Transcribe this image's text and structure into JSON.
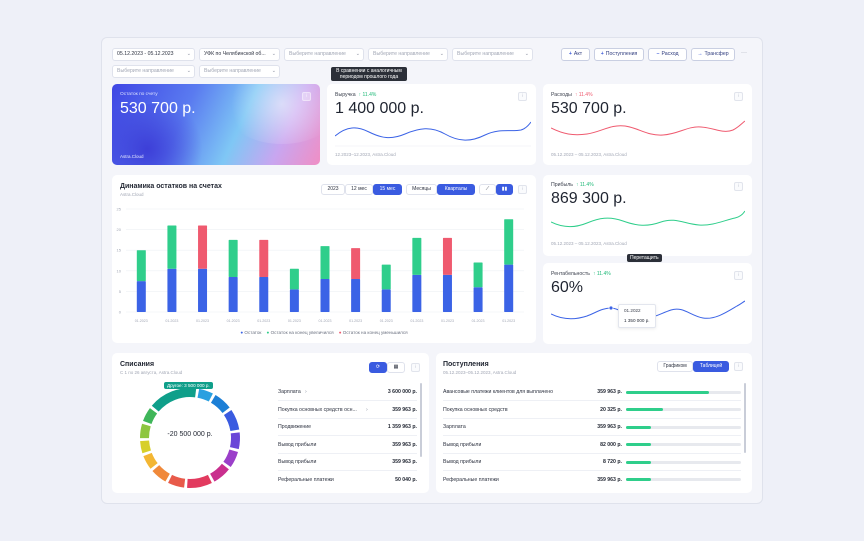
{
  "filters": {
    "date_range": "05.12.2023 - 05.12.2023",
    "org": "УФК по Челябинской об...",
    "direction_placeholder": "Выберите направление"
  },
  "actions": {
    "act": "Акт",
    "income": "Поступления",
    "expense": "Расход",
    "transfer": "Трансфер",
    "more": "···"
  },
  "tooltip_compare": "В сравнении с аналогичным периодом прошлого года",
  "tooltip_drag": "Перетащить",
  "balance_card": {
    "label": "Остаток по счету",
    "value": "530 700 р.",
    "footer": "Astra.Cloud",
    "icon": "grid-icon"
  },
  "revenue_card": {
    "label": "Выручка",
    "trend": "↑ 11.4%",
    "value": "1 400 000 р.",
    "footer": "12.2023–12.2023,  Astra.Cloud",
    "icon": "grid-icon"
  },
  "expenses_card": {
    "label": "Расходы",
    "trend": "↑ 11.4%",
    "value": "530 700 р.",
    "footer": "05.12.2023 – 05.12.2023,  Astra.Cloud",
    "icon": "grid-icon"
  },
  "profit_card": {
    "label": "Прибыль",
    "trend": "↑ 11.4%",
    "value": "869 300 р.",
    "footer": "05.12.2023 – 05.12.2023,  Astra.Cloud",
    "icon": "grid-icon"
  },
  "profitability_card": {
    "label": "Рентабельность",
    "trend": "↑ 11.4%",
    "value": "60%",
    "point_label": "01.2022",
    "point_value": "1 350 000 р.",
    "icon": "grid-icon"
  },
  "balances_chart": {
    "title": "Динамика остатков на счетах",
    "subtitle": "Astra.Cloud",
    "periods": [
      "2023",
      "12 мес",
      "15 мес"
    ],
    "active_period": "15 мес",
    "granularity": [
      "Месяцы",
      "Кварталы"
    ],
    "active_granularity": "Кварталы",
    "chart_type_icons": [
      "line-chart-icon",
      "bar-chart-icon"
    ],
    "legend": [
      "Остаток",
      "Остаток на конец увеличился",
      "Остаток на конец уменьшился"
    ]
  },
  "chart_data": {
    "type": "bar",
    "stacked": true,
    "categories": [
      "01.2023",
      "01.2023",
      "01.2023",
      "01.2023",
      "01.2023",
      "01.2023",
      "01.2023",
      "01.2023",
      "01.2023",
      "01.2023",
      "01.2023",
      "01.2023",
      "01.2023"
    ],
    "y_ticks": [
      0,
      5,
      10,
      15,
      20,
      25
    ],
    "ylim": [
      0,
      25
    ],
    "series": [
      {
        "name": "Остаток",
        "color": "#3b63e6",
        "values": [
          7.5,
          10.5,
          10.5,
          8.5,
          8.5,
          5.5,
          8,
          8,
          5.5,
          9,
          9,
          6,
          11.5
        ]
      },
      {
        "name": "Остаток на конец увеличился",
        "color": "#2fce8b",
        "values": [
          7.5,
          10.5,
          0,
          9,
          0,
          5,
          8,
          0,
          6,
          9,
          0,
          6,
          11
        ]
      },
      {
        "name": "Остаток на конец уменьшился",
        "color": "#ef5a6f",
        "values": [
          0,
          0,
          10.5,
          0,
          9,
          0,
          0,
          7.5,
          0,
          0,
          9,
          0,
          0
        ]
      }
    ]
  },
  "writeoffs": {
    "title": "Списания",
    "subtitle": "С 1 по 26 августа, Astra.Cloud",
    "center_value": "-20 500 000 р.",
    "callout": "Другое: 3 500 000 р.",
    "icons": [
      "refresh-icon",
      "table-icon",
      "grid-icon"
    ],
    "donut_colors": [
      "#0f9f8a",
      "#2aa0e0",
      "#1c7fd6",
      "#3a5be0",
      "#6a46d8",
      "#9b3fc9",
      "#c92f8e",
      "#e23a5f",
      "#e85a4a",
      "#f0893a",
      "#f3b633",
      "#d7cf2a",
      "#8dc63f",
      "#3fb65a"
    ],
    "items": [
      {
        "label": "Зарплата",
        "value": "3 600 000 р.",
        "arrow": "›"
      },
      {
        "label": "Покупка основных средств осн...",
        "value": "359 963 р.",
        "arrow": "›"
      },
      {
        "label": "Продвижение",
        "value": "1 359 963 р.",
        "arrow": ""
      },
      {
        "label": "Вывод прибыли",
        "value": "359 963 р.",
        "arrow": ""
      },
      {
        "label": "Вывод прибыли",
        "value": "359 963 р.",
        "arrow": ""
      },
      {
        "label": "Реферальные платежи",
        "value": "50 040 р.",
        "arrow": ""
      }
    ]
  },
  "receipts": {
    "title": "Поступления",
    "subtitle": "05.12.2023–05.12.2023, Astra.Cloud",
    "views": [
      "Графиком",
      "Таблицей"
    ],
    "active_view": "Таблицей",
    "icon": "grid-icon",
    "items": [
      {
        "label": "Авансовые платежи клиентов для выплаченo",
        "value": "359 963 р.",
        "progress": 0.72
      },
      {
        "label": "Покупка основных средств",
        "value": "20 325 р.",
        "progress": 0.32
      },
      {
        "label": "Зарплата",
        "value": "359 963 р.",
        "progress": 0.22
      },
      {
        "label": "Вывод прибыли",
        "value": "82 000 р.",
        "progress": 0.22
      },
      {
        "label": "Вывод прибыли",
        "value": "8 720 р.",
        "progress": 0.22
      },
      {
        "label": "Реферальные платежи",
        "value": "359 963 р.",
        "progress": 0.22
      }
    ]
  }
}
